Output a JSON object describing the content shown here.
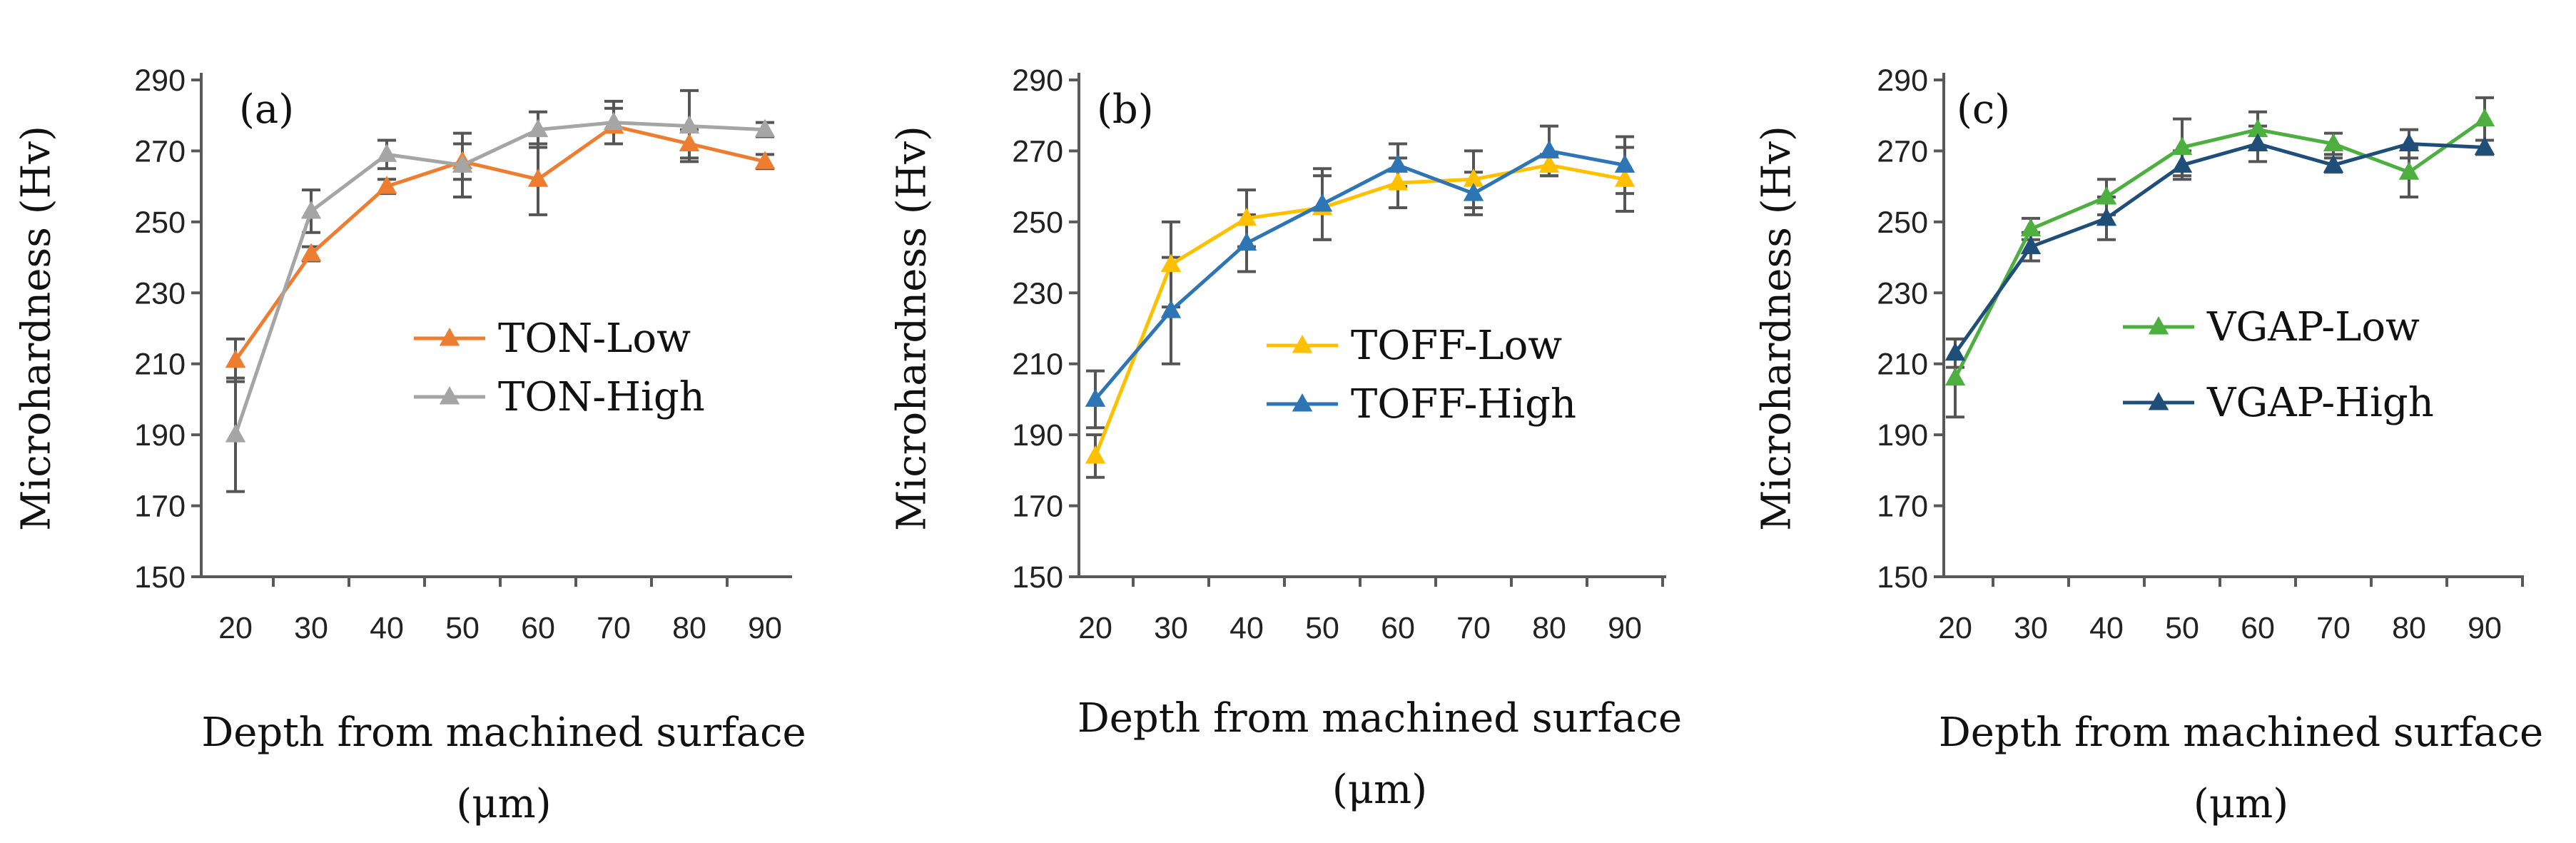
{
  "chart_data": [
    {
      "type": "line",
      "panel_label": "(a)",
      "title": "",
      "xlabel_line1": "Depth from machined surface",
      "xlabel_line2": "(μm)",
      "ylabel": "Microhardness (Hv)",
      "x": [
        20,
        30,
        40,
        50,
        60,
        70,
        80,
        90
      ],
      "ylim": [
        150,
        290
      ],
      "yticks": [
        150,
        170,
        190,
        210,
        230,
        250,
        270,
        290
      ],
      "grid": false,
      "legend_position": "center-right",
      "series": [
        {
          "name": "TON-Low",
          "color": "#ED7D31",
          "marker": "triangle",
          "values": [
            211,
            241,
            260,
            267,
            262,
            277,
            272,
            267
          ],
          "errors": [
            6,
            2,
            2,
            5,
            10,
            5,
            4,
            2
          ]
        },
        {
          "name": "TON-High",
          "color": "#A5A5A5",
          "marker": "triangle",
          "values": [
            190,
            253,
            269,
            266,
            276,
            278,
            277,
            276
          ],
          "errors": [
            16,
            6,
            4,
            9,
            5,
            6,
            10,
            2
          ]
        }
      ]
    },
    {
      "type": "line",
      "panel_label": "(b)",
      "title": "",
      "xlabel_line1": "Depth from machined surface",
      "xlabel_line2": "(μm)",
      "ylabel": "Microhardness (Hv)",
      "x": [
        20,
        30,
        40,
        50,
        60,
        70,
        80,
        90
      ],
      "ylim": [
        150,
        290
      ],
      "yticks": [
        150,
        170,
        190,
        210,
        230,
        250,
        270,
        290
      ],
      "grid": false,
      "legend_position": "center-right",
      "series": [
        {
          "name": "TOFF-Low",
          "color": "#FFC000",
          "marker": "triangle",
          "values": [
            184,
            238,
            251,
            254,
            261,
            262,
            266,
            262
          ],
          "errors": [
            6,
            12,
            8,
            9,
            7,
            8,
            3,
            9
          ]
        },
        {
          "name": "TOFF-High",
          "color": "#2E75B6",
          "marker": "triangle",
          "values": [
            200,
            225,
            244,
            255,
            266,
            258,
            270,
            266
          ],
          "errors": [
            8,
            15,
            8,
            10,
            6,
            6,
            7,
            8
          ]
        }
      ]
    },
    {
      "type": "line",
      "panel_label": "(c)",
      "title": "",
      "xlabel_line1": "Depth from machined surface",
      "xlabel_line2": "(μm)",
      "ylabel": "Microhardness (Hv)",
      "x": [
        20,
        30,
        40,
        50,
        60,
        70,
        80,
        90
      ],
      "ylim": [
        150,
        290
      ],
      "yticks": [
        150,
        170,
        190,
        210,
        230,
        250,
        270,
        290
      ],
      "grid": false,
      "legend_position": "center-right",
      "series": [
        {
          "name": "VGAP-Low",
          "color": "#4CAF3F",
          "marker": "triangle",
          "values": [
            206,
            248,
            257,
            271,
            276,
            272,
            264,
            279
          ],
          "errors": [
            11,
            3,
            5,
            8,
            5,
            3,
            7,
            6
          ]
        },
        {
          "name": "VGAP-High",
          "color": "#1F4E79",
          "marker": "triangle",
          "values": [
            213,
            243,
            251,
            266,
            272,
            266,
            272,
            271
          ],
          "errors": [
            4,
            4,
            6,
            4,
            5,
            2,
            4,
            2
          ]
        }
      ]
    }
  ]
}
